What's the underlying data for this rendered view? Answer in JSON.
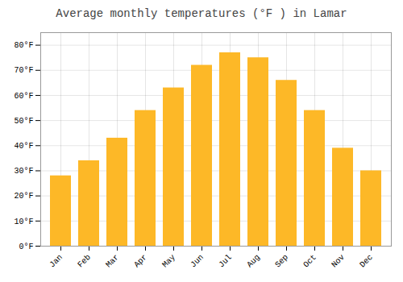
{
  "chart_data": {
    "type": "bar",
    "title": "Average monthly temperatures (°F ) in Lamar",
    "categories": [
      "Jan",
      "Feb",
      "Mar",
      "Apr",
      "May",
      "Jun",
      "Jul",
      "Aug",
      "Sep",
      "Oct",
      "Nov",
      "Dec"
    ],
    "values": [
      28,
      34,
      43,
      54,
      63,
      72,
      77,
      75,
      66,
      54,
      39,
      30
    ],
    "color": "#FDB827",
    "ylim": [
      0,
      85
    ],
    "yticks": [
      {
        "value": 0,
        "label": "0°F"
      },
      {
        "value": 10,
        "label": "10°F"
      },
      {
        "value": 20,
        "label": "20°F"
      },
      {
        "value": 30,
        "label": "30°F"
      },
      {
        "value": 40,
        "label": "40°F"
      },
      {
        "value": 50,
        "label": "50°F"
      },
      {
        "value": 60,
        "label": "60°F"
      },
      {
        "value": 70,
        "label": "70°F"
      },
      {
        "value": 80,
        "label": "80°F"
      }
    ],
    "grid": true
  }
}
